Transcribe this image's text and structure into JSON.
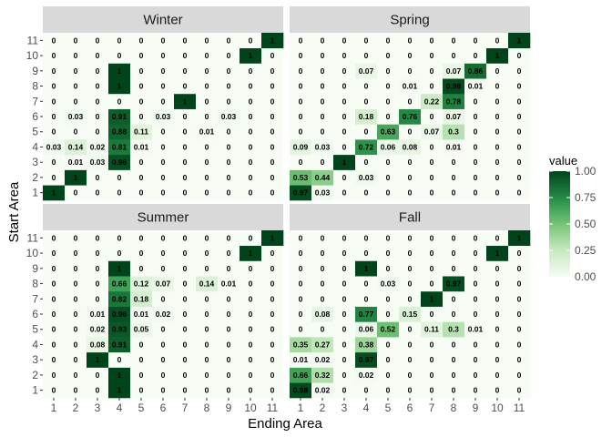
{
  "chart_data": {
    "type": "heatmap",
    "xlabel": "Ending Area",
    "ylabel": "Start Area",
    "x_categories": [
      "1",
      "2",
      "3",
      "4",
      "5",
      "6",
      "7",
      "8",
      "9",
      "10",
      "11"
    ],
    "y_categories": [
      "1",
      "2",
      "3",
      "4",
      "5",
      "6",
      "7",
      "8",
      "9",
      "10",
      "11"
    ],
    "legend": {
      "title": "value",
      "ticks": [
        "0.00",
        "0.25",
        "0.50",
        "0.75",
        "1.00"
      ],
      "range": [
        0,
        1
      ],
      "low_color": "#f7fcf5",
      "high_color": "#00441b"
    },
    "panels": [
      {
        "name": "Winter",
        "rows": [
          {
            "start": "1",
            "values": [
              "1",
              "0",
              "0",
              "0",
              "0",
              "0",
              "0",
              "0",
              "0",
              "0",
              "0"
            ]
          },
          {
            "start": "2",
            "values": [
              "0",
              "1",
              "0",
              "0",
              "0",
              "0",
              "0",
              "0",
              "0",
              "0",
              "0"
            ]
          },
          {
            "start": "3",
            "values": [
              "0",
              "0.01",
              "0.03",
              "0.96",
              "0",
              "0",
              "0",
              "0",
              "0",
              "0",
              "0"
            ]
          },
          {
            "start": "4",
            "values": [
              "0.03",
              "0.14",
              "0.02",
              "0.81",
              "0.01",
              "0",
              "0",
              "0",
              "0",
              "0",
              "0"
            ]
          },
          {
            "start": "5",
            "values": [
              "0",
              "0",
              "0",
              "0.88",
              "0.11",
              "0",
              "0",
              "0.01",
              "0",
              "0",
              "0"
            ]
          },
          {
            "start": "6",
            "values": [
              "0",
              "0.03",
              "0",
              "0.91",
              "0",
              "0.03",
              "0",
              "0",
              "0.03",
              "0",
              "0"
            ]
          },
          {
            "start": "7",
            "values": [
              "0",
              "0",
              "0",
              "0",
              "0",
              "0",
              "1",
              "0",
              "0",
              "0",
              "0"
            ]
          },
          {
            "start": "8",
            "values": [
              "0",
              "0",
              "0",
              "1",
              "0",
              "0",
              "0",
              "0",
              "0",
              "0",
              "0"
            ]
          },
          {
            "start": "9",
            "values": [
              "0",
              "0",
              "0",
              "1",
              "0",
              "0",
              "0",
              "0",
              "0",
              "0",
              "0"
            ]
          },
          {
            "start": "10",
            "values": [
              "0",
              "0",
              "0",
              "0",
              "0",
              "0",
              "0",
              "0",
              "0",
              "1",
              "0"
            ]
          },
          {
            "start": "11",
            "values": [
              "0",
              "0",
              "0",
              "0",
              "0",
              "0",
              "0",
              "0",
              "0",
              "0",
              "1"
            ]
          }
        ]
      },
      {
        "name": "Spring",
        "rows": [
          {
            "start": "1",
            "values": [
              "0.97",
              "0.03",
              "0",
              "0",
              "0",
              "0",
              "0",
              "0",
              "0",
              "0",
              "0"
            ]
          },
          {
            "start": "2",
            "values": [
              "0.53",
              "0.44",
              "0",
              "0.03",
              "0",
              "0",
              "0",
              "0",
              "0",
              "0",
              "0"
            ]
          },
          {
            "start": "3",
            "values": [
              "0",
              "0",
              "1",
              "0",
              "0",
              "0",
              "0",
              "0",
              "0",
              "0",
              "0"
            ]
          },
          {
            "start": "4",
            "values": [
              "0.09",
              "0.03",
              "0",
              "0.72",
              "0.06",
              "0.08",
              "0",
              "0.01",
              "0",
              "0",
              "0"
            ]
          },
          {
            "start": "5",
            "values": [
              "0",
              "0",
              "0",
              "0",
              "0.63",
              "0",
              "0.07",
              "0.3",
              "0",
              "0",
              "0"
            ]
          },
          {
            "start": "6",
            "values": [
              "0",
              "0",
              "0",
              "0.18",
              "0",
              "0.76",
              "0",
              "0.07",
              "0",
              "0",
              "0"
            ]
          },
          {
            "start": "7",
            "values": [
              "0",
              "0",
              "0",
              "0",
              "0",
              "0",
              "0.22",
              "0.78",
              "0",
              "0",
              "0"
            ]
          },
          {
            "start": "8",
            "values": [
              "0",
              "0",
              "0",
              "0",
              "0",
              "0.01",
              "0",
              "0.98",
              "0.01",
              "0",
              "0"
            ]
          },
          {
            "start": "9",
            "values": [
              "0",
              "0",
              "0",
              "0.07",
              "0",
              "0",
              "0",
              "0.07",
              "0.86",
              "0",
              "0"
            ]
          },
          {
            "start": "10",
            "values": [
              "0",
              "0",
              "0",
              "0",
              "0",
              "0",
              "0",
              "0",
              "0",
              "1",
              "0"
            ]
          },
          {
            "start": "11",
            "values": [
              "0",
              "0",
              "0",
              "0",
              "0",
              "0",
              "0",
              "0",
              "0",
              "0",
              "1"
            ]
          }
        ]
      },
      {
        "name": "Summer",
        "rows": [
          {
            "start": "1",
            "values": [
              "0",
              "0",
              "0",
              "1",
              "0",
              "0",
              "0",
              "0",
              "0",
              "0",
              "0"
            ]
          },
          {
            "start": "2",
            "values": [
              "0",
              "0",
              "0",
              "1",
              "0",
              "0",
              "0",
              "0",
              "0",
              "0",
              "0"
            ]
          },
          {
            "start": "3",
            "values": [
              "0",
              "0",
              "1",
              "0",
              "0",
              "0",
              "0",
              "0",
              "0",
              "0",
              "0"
            ]
          },
          {
            "start": "4",
            "values": [
              "0",
              "0",
              "0.08",
              "0.91",
              "0",
              "0",
              "0",
              "0",
              "0",
              "0",
              "0"
            ]
          },
          {
            "start": "5",
            "values": [
              "0",
              "0",
              "0.02",
              "0.93",
              "0.05",
              "0",
              "0",
              "0",
              "0",
              "0",
              "0"
            ]
          },
          {
            "start": "6",
            "values": [
              "0",
              "0",
              "0.01",
              "0.96",
              "0.01",
              "0.02",
              "0",
              "0",
              "0",
              "0",
              "0"
            ]
          },
          {
            "start": "7",
            "values": [
              "0",
              "0",
              "0",
              "0.82",
              "0.18",
              "0",
              "0",
              "0",
              "0",
              "0",
              "0"
            ]
          },
          {
            "start": "8",
            "values": [
              "0",
              "0",
              "0",
              "0.66",
              "0.12",
              "0.07",
              "0",
              "0.14",
              "0.01",
              "0",
              "0"
            ]
          },
          {
            "start": "9",
            "values": [
              "0",
              "0",
              "0",
              "1",
              "0",
              "0",
              "0",
              "0",
              "0",
              "0",
              "0"
            ]
          },
          {
            "start": "10",
            "values": [
              "0",
              "0",
              "0",
              "0",
              "0",
              "0",
              "0",
              "0",
              "0",
              "1",
              "0"
            ]
          },
          {
            "start": "11",
            "values": [
              "0",
              "0",
              "0",
              "0",
              "0",
              "0",
              "0",
              "0",
              "0",
              "0",
              "1"
            ]
          }
        ]
      },
      {
        "name": "Fall",
        "rows": [
          {
            "start": "1",
            "values": [
              "0.98",
              "0.02",
              "0",
              "0",
              "0",
              "0",
              "0",
              "0",
              "0",
              "0",
              "0"
            ]
          },
          {
            "start": "2",
            "values": [
              "0.66",
              "0.32",
              "0",
              "0.02",
              "0",
              "0",
              "0",
              "0",
              "0",
              "0",
              "0"
            ]
          },
          {
            "start": "3",
            "values": [
              "0.01",
              "0.02",
              "0",
              "0.97",
              "0",
              "0",
              "0",
              "0",
              "0",
              "0",
              "0"
            ]
          },
          {
            "start": "4",
            "values": [
              "0.35",
              "0.27",
              "0",
              "0.38",
              "0",
              "0",
              "0",
              "0",
              "0",
              "0",
              "0"
            ]
          },
          {
            "start": "5",
            "values": [
              "0",
              "0",
              "0",
              "0.06",
              "0.52",
              "0",
              "0.11",
              "0.3",
              "0.01",
              "0",
              "0"
            ]
          },
          {
            "start": "6",
            "values": [
              "0",
              "0.08",
              "0",
              "0.77",
              "0",
              "0.15",
              "0",
              "0",
              "0",
              "0",
              "0"
            ]
          },
          {
            "start": "7",
            "values": [
              "0",
              "0",
              "0",
              "0",
              "0",
              "0",
              "1",
              "0",
              "0",
              "0",
              "0"
            ]
          },
          {
            "start": "8",
            "values": [
              "0",
              "0",
              "0",
              "0",
              "0.03",
              "0",
              "0",
              "0.97",
              "0",
              "0",
              "0"
            ]
          },
          {
            "start": "9",
            "values": [
              "0",
              "0",
              "0",
              "1",
              "0",
              "0",
              "0",
              "0",
              "0",
              "0",
              "0"
            ]
          },
          {
            "start": "10",
            "values": [
              "0",
              "0",
              "0",
              "0",
              "0",
              "0",
              "0",
              "0",
              "0",
              "1",
              "0"
            ]
          },
          {
            "start": "11",
            "values": [
              "0",
              "0",
              "0",
              "0",
              "0",
              "0",
              "0",
              "0",
              "0",
              "0",
              "1"
            ]
          }
        ]
      }
    ]
  },
  "colors": {
    "strip_background": "#d9d9d9",
    "panel_background": "#ebebeb",
    "grid_line": "#ffffff"
  }
}
